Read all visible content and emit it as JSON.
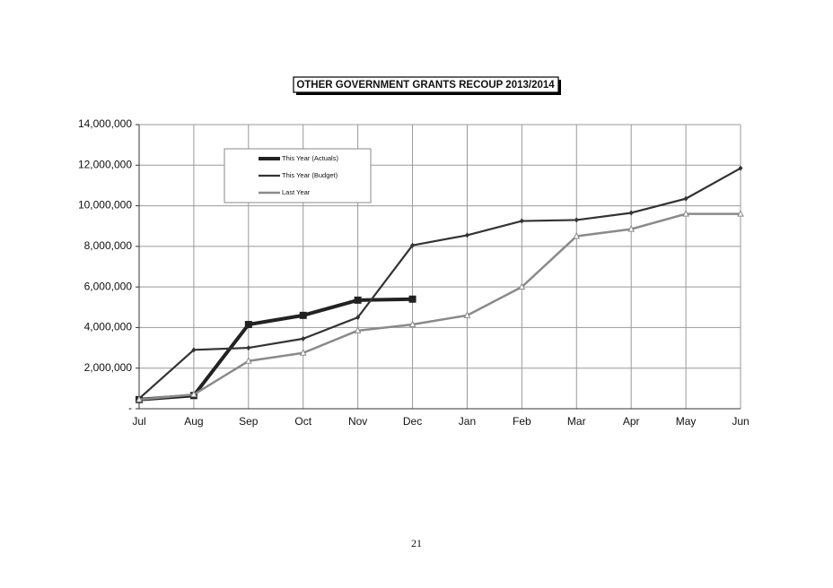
{
  "chart_data": {
    "type": "line",
    "title": "OTHER GOVERNMENT GRANTS  RECOUP 2013/2014",
    "categories": [
      "Jul",
      "Aug",
      "Sep",
      "Oct",
      "Nov",
      "Dec",
      "Jan",
      "Feb",
      "Mar",
      "Apr",
      "May",
      "Jun"
    ],
    "series": [
      {
        "name": "This Year (Actuals)",
        "color": "#222222",
        "values": [
          450000,
          650000,
          4150000,
          4600000,
          5350000,
          5400000,
          null,
          null,
          null,
          null,
          null,
          null
        ]
      },
      {
        "name": "This Year (Budget)",
        "color": "#333333",
        "values": [
          500000,
          2900000,
          3000000,
          3450000,
          4500000,
          8050000,
          8550000,
          9250000,
          9300000,
          9650000,
          10350000,
          11850000
        ]
      },
      {
        "name": "Last Year",
        "color": "#8a8a8a",
        "values": [
          450000,
          700000,
          2350000,
          2750000,
          3850000,
          4150000,
          4600000,
          6000000,
          8500000,
          8850000,
          9600000,
          9600000
        ]
      }
    ],
    "ylim": [
      0,
      14000000
    ],
    "yticks": [
      {
        "value": 0,
        "label": "-"
      },
      {
        "value": 2000000,
        "label": "2,000,000"
      },
      {
        "value": 4000000,
        "label": "4,000,000"
      },
      {
        "value": 6000000,
        "label": "6,000,000"
      },
      {
        "value": 8000000,
        "label": "8,000,000"
      },
      {
        "value": 10000000,
        "label": "10,000,000"
      },
      {
        "value": 12000000,
        "label": "12,000,000"
      },
      {
        "value": 14000000,
        "label": "14,000,000"
      }
    ],
    "grid": true
  },
  "page_number": "21"
}
